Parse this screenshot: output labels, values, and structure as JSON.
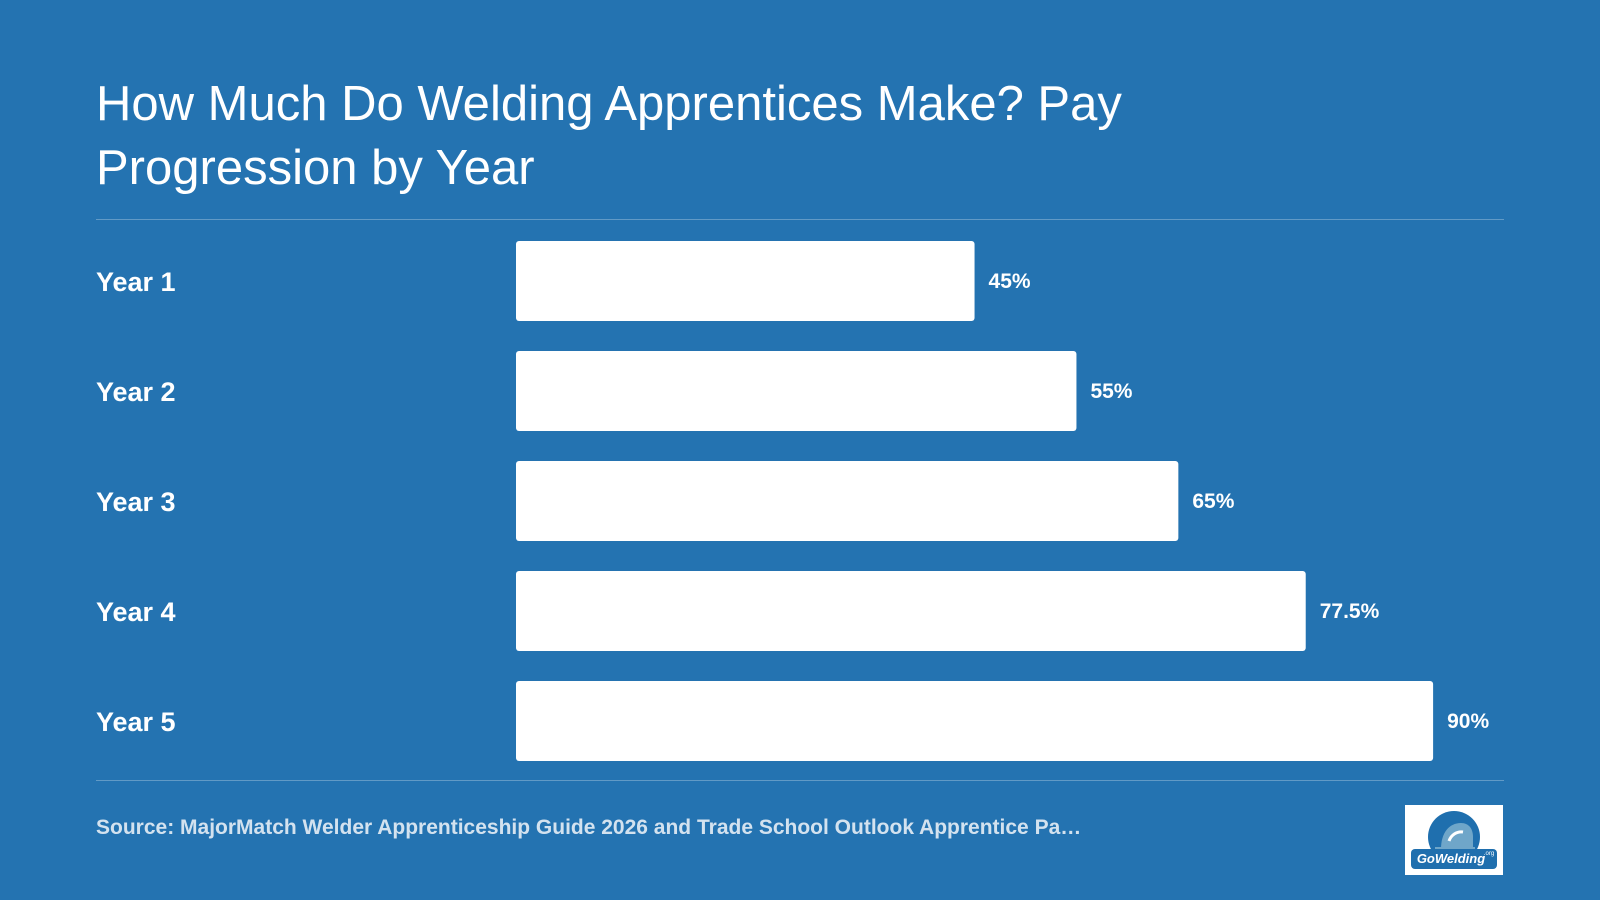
{
  "title": "How Much Do Welding Apprentices Make? Pay Progression by Year",
  "source": "Source: MajorMatch Welder Apprenticeship Guide 2026 and Trade School Outlook Apprentice Pa…",
  "logo": {
    "text": "GoWelding",
    "suffix": ".org",
    "icon": "welder-helmet-logo"
  },
  "colors": {
    "background": "#2473b1",
    "bar": "#ffffff",
    "text": "#ffffff",
    "source_text": "#d3e2ef",
    "logo_blue": "#1f6fae"
  },
  "chart_data": {
    "type": "bar",
    "orientation": "horizontal",
    "categories": [
      "Year 1",
      "Year 2",
      "Year 3",
      "Year 4",
      "Year 5"
    ],
    "values": [
      45,
      55,
      65,
      77.5,
      90
    ],
    "value_labels": [
      "45%",
      "55%",
      "65%",
      "77.5%",
      "90%"
    ],
    "xlim": [
      0,
      100
    ],
    "grid": false,
    "legend": "none"
  }
}
